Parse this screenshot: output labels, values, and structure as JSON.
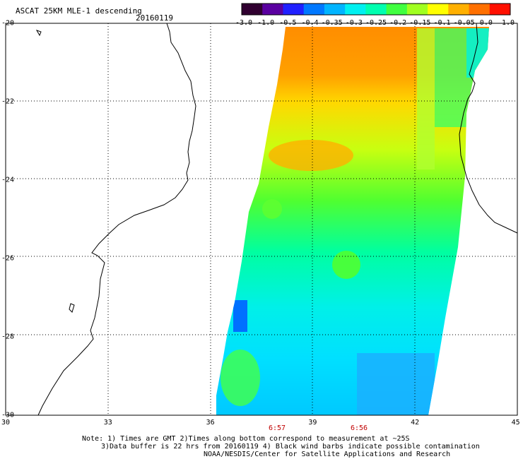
{
  "title": "ASCAT 25KM MLE-1 descending",
  "date": "20160119",
  "colorbar": {
    "labels": [
      "-3.0",
      "-1.0",
      "-0.5",
      "-0.4",
      "-0.35",
      "-0.3",
      "-0.25",
      "-0.2",
      "-0.15",
      "-0.1",
      "-0.05",
      "0.0",
      "1.0"
    ],
    "colors": [
      "#300030",
      "#5a00a0",
      "#2020ff",
      "#0078ff",
      "#00b4ff",
      "#00f0f0",
      "#00ffb0",
      "#40ff40",
      "#a0ff20",
      "#ffff00",
      "#ffb000",
      "#ff7000",
      "#ff1000"
    ]
  },
  "axes": {
    "lat_labels": [
      "-20",
      "-22",
      "-24",
      "-26",
      "-28",
      "-30"
    ],
    "lon_labels": [
      "30",
      "33",
      "36",
      "39",
      "42",
      "45"
    ]
  },
  "times": [
    "6:57",
    "6:56"
  ],
  "notes": [
    "Note: 1) Times are GMT 2)Times along bottom correspond to measurement at ~25S",
    "3)Data buffer is 22 hrs from 20160119 4) Black wind barbs indicate possible contamination",
    "NOAA/NESDIS/Center for Satellite Applications and Research"
  ]
}
